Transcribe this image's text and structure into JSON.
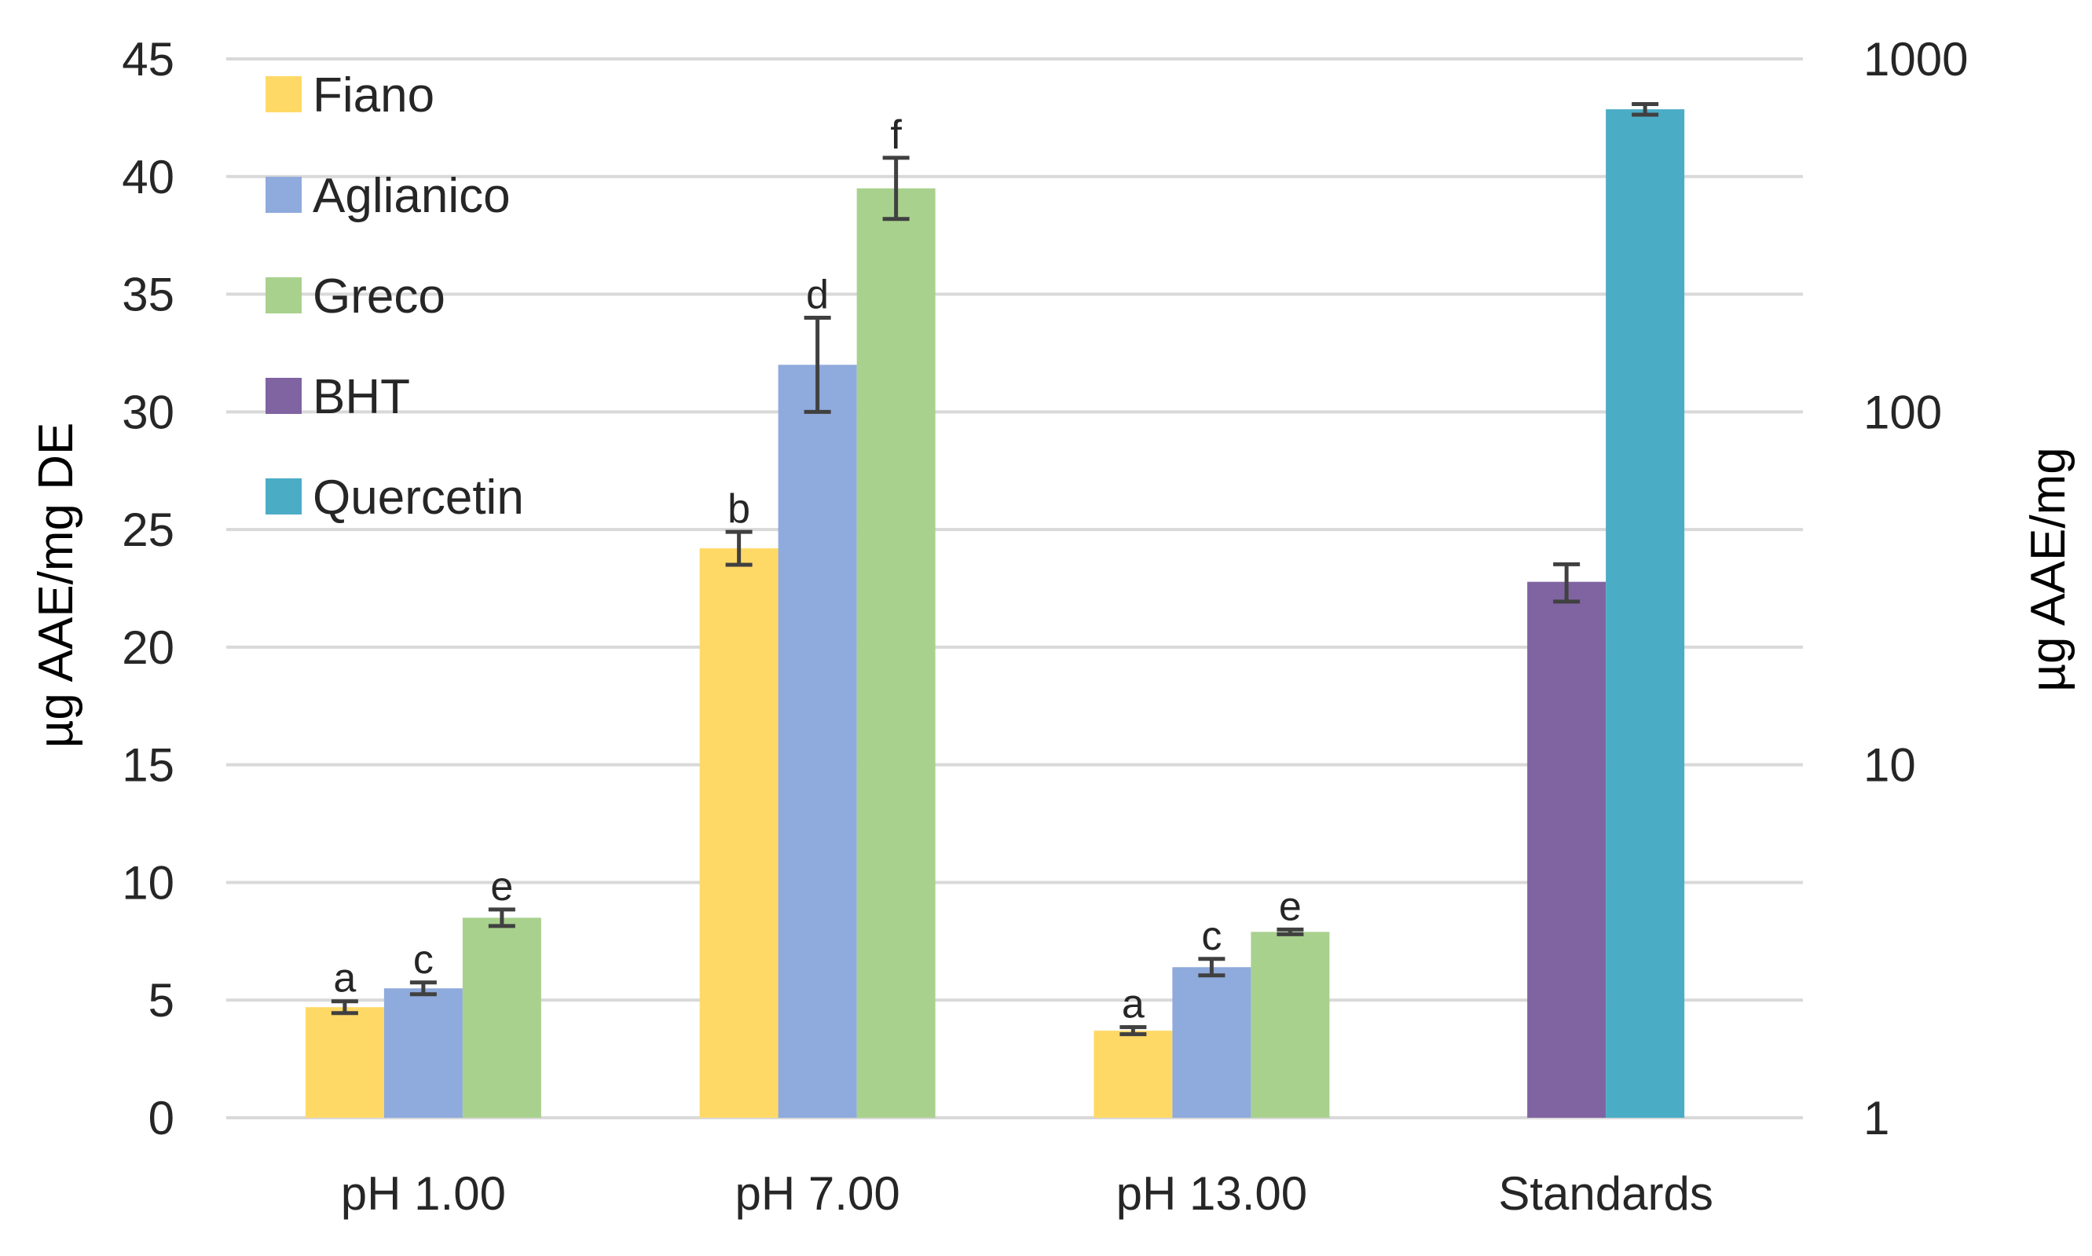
{
  "chart_data": {
    "type": "bar",
    "categories": [
      "pH 1.00",
      "pH 7.00",
      "pH 13.00",
      "Standards"
    ],
    "ylabel": "µg AAE/mg DE",
    "y2label": "µg AAE/mg",
    "ylim": [
      0,
      45
    ],
    "yticks": [
      0,
      5,
      10,
      15,
      20,
      25,
      30,
      35,
      40,
      45
    ],
    "y2scale": "log",
    "y2lim": [
      1,
      1000
    ],
    "y2ticks": [
      "1",
      "10",
      "100",
      "1000"
    ],
    "grid": true,
    "legend_position": "top-left",
    "series": [
      {
        "name": "Fiano",
        "color": "#FFD966",
        "axis": "left",
        "values": [
          4.7,
          24.2,
          3.7,
          null
        ],
        "errors": [
          0.25,
          0.7,
          0.15,
          null
        ],
        "labels": [
          "a",
          "b",
          "a",
          null
        ]
      },
      {
        "name": "Aglianico",
        "color": "#8FAADC",
        "axis": "left",
        "values": [
          5.5,
          32.0,
          6.4,
          null
        ],
        "errors": [
          0.25,
          2.0,
          0.35,
          null
        ],
        "labels": [
          "c",
          "d",
          "c",
          null
        ]
      },
      {
        "name": "Greco",
        "color": "#A9D18E",
        "axis": "left",
        "values": [
          8.5,
          39.5,
          7.9,
          null
        ],
        "errors": [
          0.35,
          1.3,
          0.1,
          null
        ],
        "labels": [
          "e",
          "f",
          "e",
          null
        ]
      },
      {
        "name": "BHT",
        "color": "#8064A2",
        "axis": "right",
        "values": [
          null,
          null,
          null,
          33
        ],
        "errors": [
          null,
          null,
          null,
          4
        ],
        "labels": [
          null,
          null,
          null,
          null
        ]
      },
      {
        "name": "Quercetin",
        "color": "#4BACC6",
        "axis": "right",
        "values": [
          null,
          null,
          null,
          720
        ],
        "errors": [
          null,
          null,
          null,
          25
        ],
        "labels": [
          null,
          null,
          null,
          null
        ]
      }
    ]
  }
}
